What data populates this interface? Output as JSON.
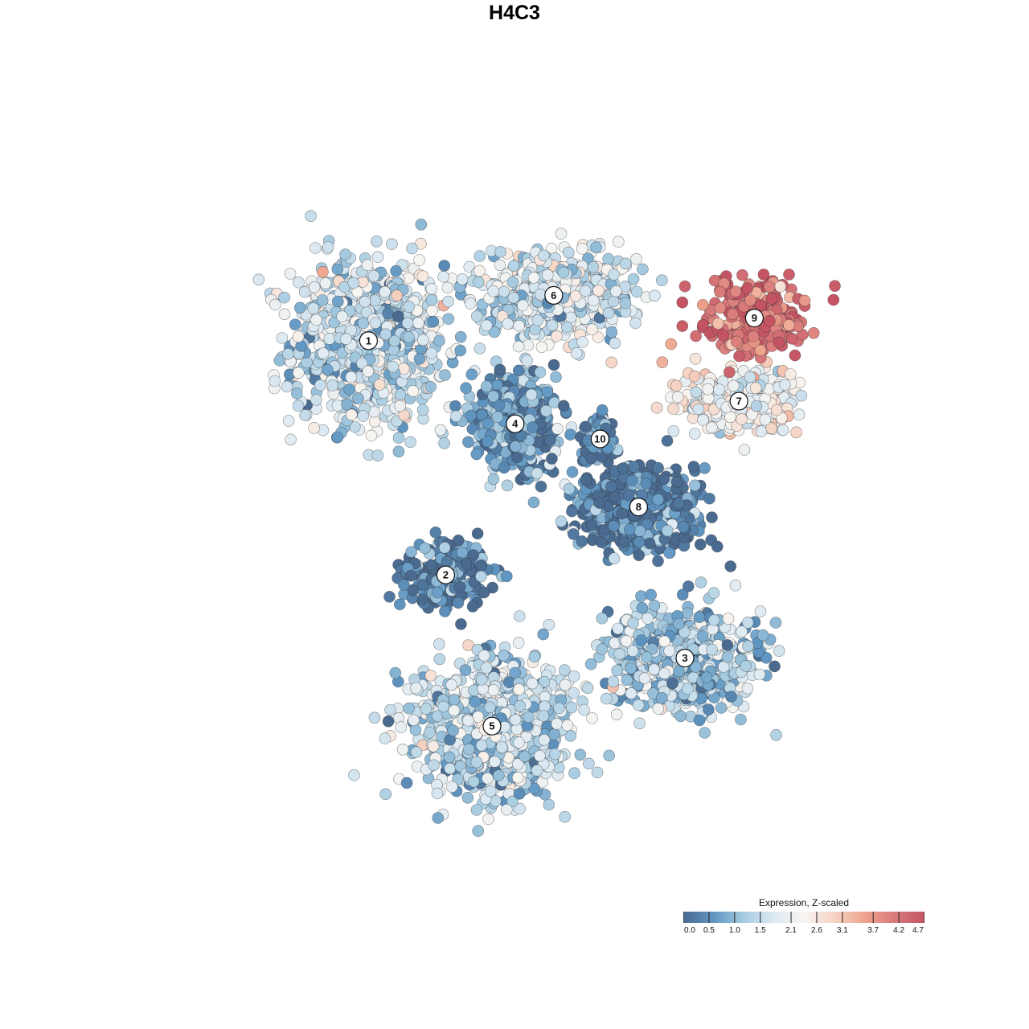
{
  "chart_data": {
    "type": "scatter",
    "title": "H4C3",
    "xlabel": "",
    "ylabel": "",
    "grid": false,
    "legend": {
      "title": "Expression, Z-scaled",
      "placement": "bottom-right",
      "ticks": [
        "0.0",
        "0.5",
        "1.0",
        "1.5",
        "2.1",
        "2.6",
        "3.1",
        "3.7",
        "4.2",
        "4.7"
      ],
      "tick_values": [
        0.0,
        0.5,
        1.0,
        1.5,
        2.1,
        2.6,
        3.1,
        3.7,
        4.2,
        4.7
      ],
      "range": [
        0.0,
        4.7
      ]
    },
    "colorscale": [
      "#4a6a8f",
      "#5f96c2",
      "#a6cbe0",
      "#dce9f2",
      "#f7f5f1",
      "#f6d4c4",
      "#eea58e",
      "#d97b7b",
      "#c45463"
    ],
    "clusters": [
      {
        "label": "1",
        "x": 0.29,
        "y": 0.73,
        "spread_x": 0.09,
        "spread_y": 0.1,
        "mean_expr": 1.6,
        "n": 900
      },
      {
        "label": "2",
        "x": 0.39,
        "y": 0.42,
        "spread_x": 0.05,
        "spread_y": 0.04,
        "mean_expr": 0.3,
        "n": 220
      },
      {
        "label": "3",
        "x": 0.7,
        "y": 0.31,
        "spread_x": 0.09,
        "spread_y": 0.06,
        "mean_expr": 1.2,
        "n": 620
      },
      {
        "label": "4",
        "x": 0.48,
        "y": 0.62,
        "spread_x": 0.05,
        "spread_y": 0.05,
        "mean_expr": 0.6,
        "n": 500
      },
      {
        "label": "5",
        "x": 0.45,
        "y": 0.22,
        "spread_x": 0.09,
        "spread_y": 0.08,
        "mean_expr": 1.5,
        "n": 900
      },
      {
        "label": "6",
        "x": 0.53,
        "y": 0.79,
        "spread_x": 0.09,
        "spread_y": 0.05,
        "mean_expr": 1.7,
        "n": 600
      },
      {
        "label": "7",
        "x": 0.77,
        "y": 0.65,
        "spread_x": 0.07,
        "spread_y": 0.04,
        "mean_expr": 2.2,
        "n": 300
      },
      {
        "label": "8",
        "x": 0.64,
        "y": 0.51,
        "spread_x": 0.08,
        "spread_y": 0.05,
        "mean_expr": 0.2,
        "n": 500
      },
      {
        "label": "9",
        "x": 0.79,
        "y": 0.76,
        "spread_x": 0.06,
        "spread_y": 0.04,
        "mean_expr": 4.4,
        "n": 260
      },
      {
        "label": "10",
        "x": 0.59,
        "y": 0.6,
        "spread_x": 0.02,
        "spread_y": 0.03,
        "mean_expr": 0.5,
        "n": 80
      }
    ]
  }
}
